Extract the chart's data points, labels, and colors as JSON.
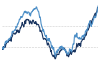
{
  "title": "",
  "background_color": "#ffffff",
  "line1_color": "#1a3560",
  "line2_color": "#4d8fc7",
  "grid_color": "#cccccc",
  "figsize": [
    1.0,
    0.71
  ],
  "dpi": 100
}
